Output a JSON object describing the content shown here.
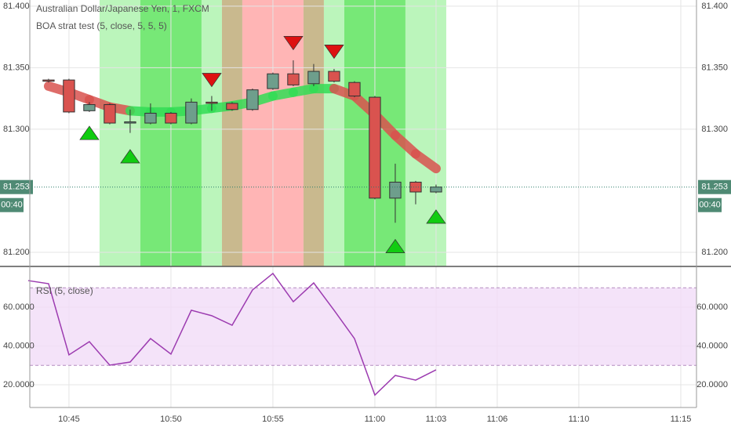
{
  "chart_data": [
    {
      "type": "candlestick",
      "title": "Australian Dollar/Japanese Yen, 1, FXCM",
      "subtitle": "BOA strat test (5, close, 5, 5, 5)",
      "x": [
        44,
        45,
        46,
        47,
        48,
        49,
        50,
        51,
        52,
        53,
        54,
        55,
        56,
        57,
        58,
        59,
        60,
        61,
        62,
        63
      ],
      "open": [
        81.34,
        81.34,
        81.315,
        81.32,
        81.305,
        81.305,
        81.313,
        81.305,
        81.322,
        81.321,
        81.316,
        81.333,
        81.345,
        81.337,
        81.347,
        81.338,
        81.326,
        81.244,
        81.257,
        81.249
      ],
      "high": [
        81.341,
        81.341,
        81.322,
        81.321,
        81.316,
        81.321,
        81.314,
        81.325,
        81.327,
        81.322,
        81.333,
        81.346,
        81.356,
        81.353,
        81.349,
        81.339,
        81.327,
        81.272,
        81.258,
        81.255
      ],
      "low": [
        81.338,
        81.313,
        81.314,
        81.304,
        81.297,
        81.304,
        81.304,
        81.304,
        81.315,
        81.315,
        81.315,
        81.332,
        81.335,
        81.335,
        81.338,
        81.326,
        81.243,
        81.224,
        81.239,
        81.248
      ],
      "close": [
        81.339,
        81.314,
        81.32,
        81.305,
        81.306,
        81.313,
        81.305,
        81.322,
        81.321,
        81.316,
        81.332,
        81.345,
        81.336,
        81.347,
        81.339,
        81.327,
        81.244,
        81.257,
        81.249,
        81.253
      ],
      "up_color": "#6e9e8c",
      "down_color": "#d9534f",
      "ma": {
        "values": [
          81.335,
          81.33,
          81.324,
          81.318,
          81.315,
          81.314,
          81.314,
          81.315,
          81.317,
          81.319,
          81.322,
          81.327,
          81.33,
          81.333,
          81.333,
          81.327,
          81.312,
          81.295,
          81.28,
          81.268
        ],
        "colors": [
          "#d9534f",
          "#d9534f",
          "#d9534f",
          "#d9534f",
          "#33dd55",
          "#33dd55",
          "#33dd55",
          "#33dd55",
          "#33dd55",
          "#33dd55",
          "#33dd55",
          "#33dd55",
          "#33dd55",
          "#33dd55",
          "#d9534f",
          "#d9534f",
          "#d9534f",
          "#d9534f",
          "#d9534f",
          "#d9534f"
        ]
      },
      "zones": [
        {
          "start": 46.5,
          "end": 48.5,
          "color": "#bbf5bb"
        },
        {
          "start": 48.5,
          "end": 51.5,
          "color": "#77e877"
        },
        {
          "start": 51.5,
          "end": 52.5,
          "color": "#bbf5bb"
        },
        {
          "start": 52.5,
          "end": 53.5,
          "color": "#c9b98e"
        },
        {
          "start": 53.5,
          "end": 56.5,
          "color": "#ffb5b5"
        },
        {
          "start": 56.5,
          "end": 57.5,
          "color": "#c9b98e"
        },
        {
          "start": 57.5,
          "end": 58.5,
          "color": "#bbf5bb"
        },
        {
          "start": 58.5,
          "end": 61.5,
          "color": "#77e877"
        },
        {
          "start": 61.5,
          "end": 63.5,
          "color": "#bbf5bb"
        }
      ],
      "markers": [
        {
          "x": 46,
          "y": 81.297,
          "direction": "up",
          "color": "#11cc11"
        },
        {
          "x": 48,
          "y": 81.278,
          "direction": "up",
          "color": "#11cc11"
        },
        {
          "x": 52,
          "y": 81.34,
          "direction": "down",
          "color": "#dd1111"
        },
        {
          "x": 56,
          "y": 81.37,
          "direction": "down",
          "color": "#dd1111"
        },
        {
          "x": 58,
          "y": 81.363,
          "direction": "down",
          "color": "#dd1111"
        },
        {
          "x": 61,
          "y": 81.205,
          "direction": "up",
          "color": "#11cc11"
        },
        {
          "x": 63,
          "y": 81.229,
          "direction": "up",
          "color": "#11cc11"
        }
      ],
      "last_price": {
        "value": 81.253,
        "label": "81.253"
      },
      "countdown": "00:40",
      "xlim": [
        43.08,
        75.77
      ],
      "ylim": [
        81.1885,
        81.405
      ],
      "xticks": [
        45,
        50,
        55,
        60,
        63,
        66,
        70,
        75
      ],
      "yticks": [
        {
          "value": 81.4,
          "label": "81.400"
        },
        {
          "value": 81.35,
          "label": "81.350"
        },
        {
          "value": 81.3,
          "label": "81.300"
        },
        {
          "value": 81.2,
          "label": "81.200"
        }
      ],
      "grid": true
    },
    {
      "type": "line",
      "title": "RSI (5, close)",
      "x": [
        43,
        44,
        45,
        46,
        47,
        48,
        49,
        50,
        51,
        52,
        53,
        54,
        55,
        56,
        57,
        58,
        59,
        60,
        61,
        62,
        63
      ],
      "values": [
        73.7,
        72.1,
        35.4,
        42.2,
        30.1,
        31.7,
        43.8,
        35.8,
        58.4,
        55.6,
        50.7,
        68.9,
        77.4,
        62.8,
        72.5,
        58.4,
        43.8,
        14.7,
        24.8,
        22.4,
        27.7
      ],
      "color": "#9c3bb0",
      "levels": [
        30,
        70
      ],
      "band_color": "#f1dcf7",
      "xlim": [
        43.08,
        75.77
      ],
      "ylim": [
        8.28,
        81
      ],
      "xticks": [
        {
          "value": 45,
          "label": "10:45"
        },
        {
          "value": 50,
          "label": "10:50"
        },
        {
          "value": 55,
          "label": "10:55"
        },
        {
          "value": 60,
          "label": "11:00"
        },
        {
          "value": 63,
          "label": "11:03"
        },
        {
          "value": 66,
          "label": "11:06"
        },
        {
          "value": 70,
          "label": "11:10"
        },
        {
          "value": 75,
          "label": "11:15"
        }
      ],
      "yticks": [
        {
          "value": 60,
          "label": "60.0000"
        },
        {
          "value": 40,
          "label": "40.0000"
        },
        {
          "value": 20,
          "label": "20.0000"
        }
      ],
      "grid": true
    }
  ]
}
